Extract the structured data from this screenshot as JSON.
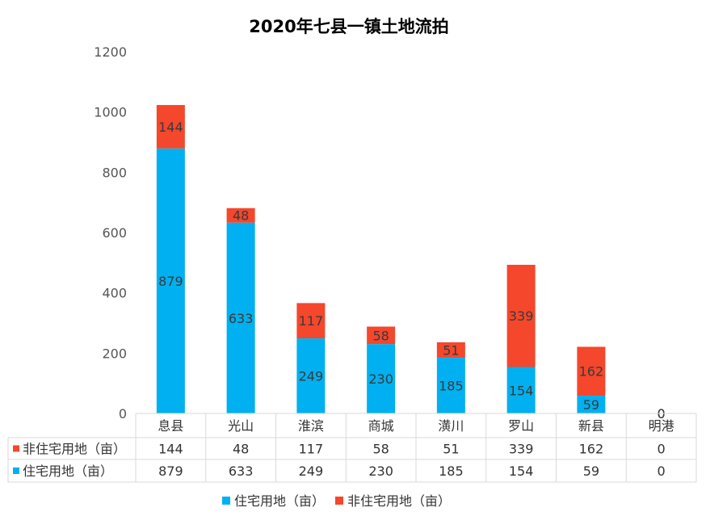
{
  "chart_data": {
    "type": "bar",
    "stacked": true,
    "title": "2020年七县一镇土地流拍",
    "categories": [
      "息县",
      "光山",
      "淮滨",
      "商城",
      "潢川",
      "罗山",
      "新县",
      "明港"
    ],
    "series": [
      {
        "name": "住宅用地（亩）",
        "color": "#00B0F0",
        "values": [
          879,
          633,
          249,
          230,
          185,
          154,
          59,
          0
        ]
      },
      {
        "name": "非住宅用地（亩）",
        "color": "#F4472C",
        "values": [
          144,
          48,
          117,
          58,
          51,
          339,
          162,
          0
        ]
      }
    ],
    "ylim": [
      0,
      1200
    ],
    "yticks": [
      0,
      200,
      400,
      600,
      800,
      1000,
      1200
    ],
    "grid": false,
    "data_table": true,
    "legend_position": "bottom"
  }
}
